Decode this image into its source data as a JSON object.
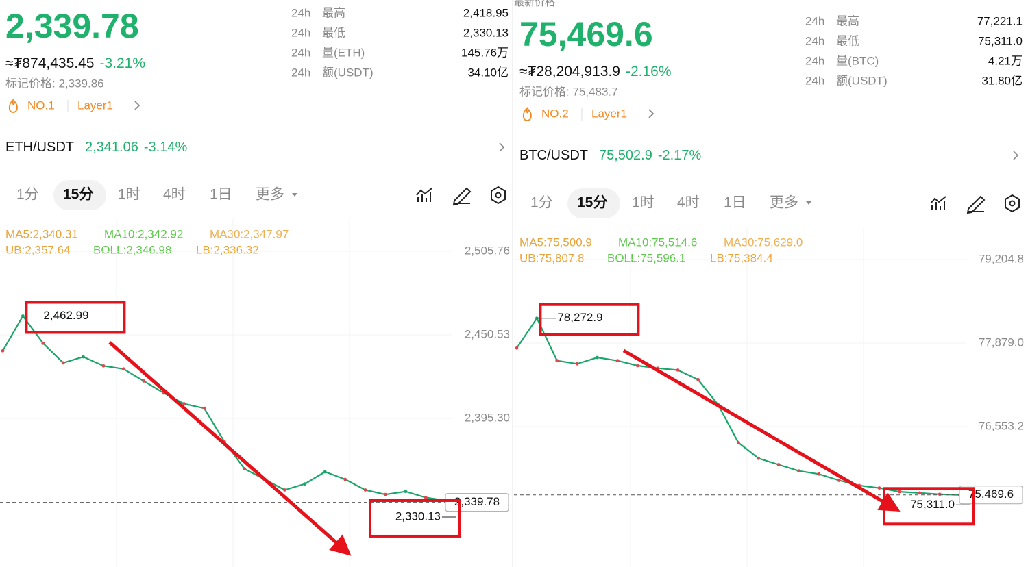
{
  "panels": [
    {
      "price": "2,339.78",
      "fiat": "≈₮874,435.45",
      "change": "-3.21%",
      "mark_price": "标记价格: 2,339.86",
      "rank": "NO.1",
      "tag": "Layer1",
      "stats": [
        [
          "24h",
          "最高",
          "2,418.95"
        ],
        [
          "24h",
          "最低",
          "2,330.13"
        ],
        [
          "24h",
          "量(ETH)",
          "145.76万"
        ],
        [
          "24h",
          "额(USDT)",
          "34.10亿"
        ]
      ],
      "pair": "ETH/USDT",
      "pair_price": "2,341.06",
      "pair_change": "-3.14%",
      "intervals": [
        "1分",
        "15分",
        "1时",
        "4时",
        "1日",
        "更多"
      ],
      "indicators": [
        "MA5:2,340.31",
        "MA10:2,342.92",
        "MA30:2,347.97",
        "UB:2,357.64",
        "BOLL:2,346.98",
        "LB:2,336.32"
      ],
      "chart": {
        "yticks": [
          {
            "value": 2505.76,
            "label": "2,505.76"
          },
          {
            "value": 2450.53,
            "label": "2,450.53"
          },
          {
            "value": 2395.3,
            "label": "2,395.30"
          }
        ],
        "high": {
          "value": 2462.99,
          "label": "2,462.99"
        },
        "low": {
          "value": 2330.13,
          "label": "2,330.13"
        },
        "last": {
          "value": 2339.78,
          "label": "2,339.78"
        },
        "close": [
          2440,
          2462.99,
          2445,
          2432,
          2436,
          2430,
          2428,
          2420,
          2412,
          2405,
          2402,
          2380,
          2362,
          2355,
          2348,
          2352,
          2360,
          2355,
          2348,
          2345,
          2347,
          2343,
          2341,
          2339.78
        ]
      }
    },
    {
      "label": "最新价格",
      "price": "75,469.6",
      "fiat": "≈₮28,204,913.9",
      "change": "-2.16%",
      "mark_price": "标记价格: 75,483.7",
      "rank": "NO.2",
      "tag": "Layer1",
      "stats": [
        [
          "24h",
          "最高",
          "77,221.1"
        ],
        [
          "24h",
          "最低",
          "75,311.0"
        ],
        [
          "24h",
          "量(BTC)",
          "4.21万"
        ],
        [
          "24h",
          "额(USDT)",
          "31.80亿"
        ]
      ],
      "pair": "BTC/USDT",
      "pair_price": "75,502.9",
      "pair_change": "-2.17%",
      "intervals": [
        "1分",
        "15分",
        "1时",
        "4时",
        "1日",
        "更多"
      ],
      "indicators": [
        "MA5:75,500.9",
        "MA10:75,514.6",
        "MA30:75,629.0",
        "UB:75,807.8",
        "BOLL:75,596.1",
        "LB:75,384.4"
      ],
      "chart": {
        "yticks": [
          {
            "value": 79204.8,
            "label": "79,204.8"
          },
          {
            "value": 77879.0,
            "label": "77,879.0"
          },
          {
            "value": 76553.2,
            "label": "76,553.2"
          }
        ],
        "high": {
          "value": 78272.9,
          "label": "78,272.9"
        },
        "low": {
          "value": 75311.0,
          "label": "75,311.0"
        },
        "last": {
          "value": 75469.6,
          "label": "75,469.6"
        },
        "close": [
          77800,
          78272.9,
          77600,
          77550,
          77650,
          77600,
          77520,
          77480,
          77450,
          77300,
          76900,
          76300,
          76050,
          75950,
          75850,
          75800,
          75700,
          75620,
          75580,
          75520,
          75500,
          75480,
          75470,
          75469.6
        ]
      }
    }
  ]
}
